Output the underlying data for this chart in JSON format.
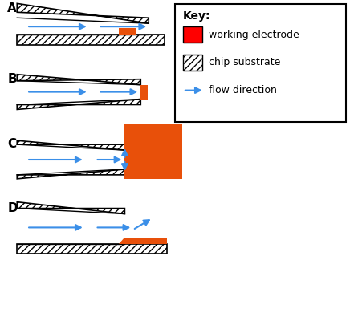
{
  "electrode_color": "#E8500A",
  "bg_color": "#ffffff",
  "arrow_color": "#3B8FE8",
  "label_color": "#000000",
  "key_title": "Key:",
  "key_items": [
    "working electrode",
    "chip substrate",
    "flow direction"
  ],
  "key_electrode_color": "#FF0000",
  "figsize": [
    4.36,
    4.0
  ],
  "dpi": 100
}
